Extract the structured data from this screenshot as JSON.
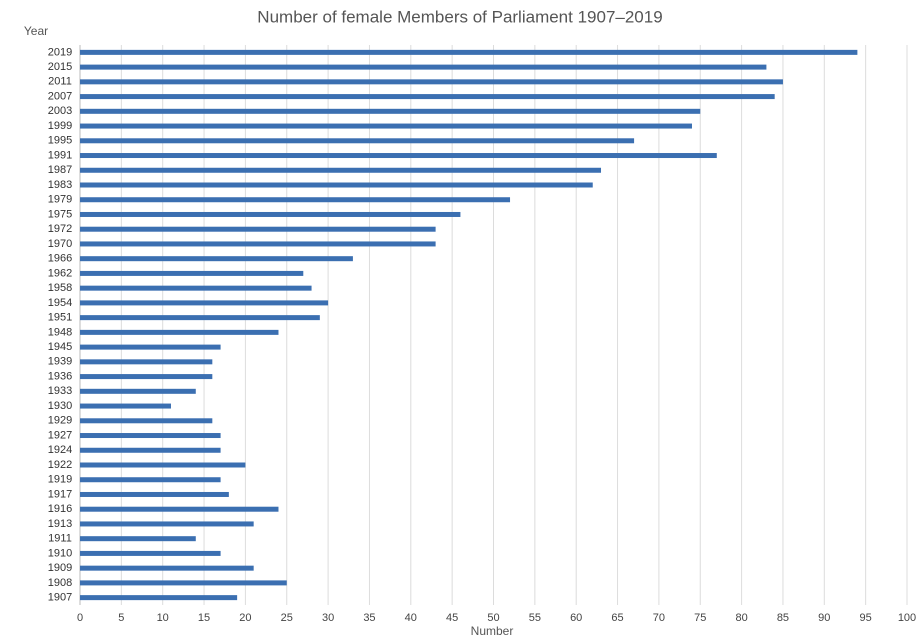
{
  "chart_data": {
    "type": "hbar",
    "title": "Number of female Members of Parliament 1907–2019",
    "y_label": "Year",
    "x_label": "Number",
    "categories": [
      "2019",
      "2015",
      "2011",
      "2007",
      "2003",
      "1999",
      "1995",
      "1991",
      "1987",
      "1983",
      "1979",
      "1975",
      "1972",
      "1970",
      "1966",
      "1962",
      "1958",
      "1954",
      "1951",
      "1948",
      "1945",
      "1939",
      "1936",
      "1933",
      "1930",
      "1929",
      "1927",
      "1924",
      "1922",
      "1919",
      "1917",
      "1916",
      "1913",
      "1911",
      "1910",
      "1909",
      "1908",
      "1907"
    ],
    "values": [
      94,
      83,
      85,
      84,
      75,
      74,
      67,
      77,
      63,
      62,
      52,
      46,
      43,
      43,
      33,
      27,
      28,
      30,
      29,
      24,
      17,
      16,
      16,
      14,
      11,
      16,
      17,
      17,
      20,
      17,
      18,
      24,
      21,
      14,
      17,
      21,
      25,
      19
    ],
    "color": "#3b6fb1",
    "xlim": [
      0,
      100
    ],
    "xticks": [
      0,
      5,
      10,
      15,
      20,
      25,
      30,
      35,
      40,
      45,
      50,
      55,
      60,
      65,
      70,
      75,
      80,
      85,
      90,
      95,
      100
    ],
    "grid": true
  }
}
